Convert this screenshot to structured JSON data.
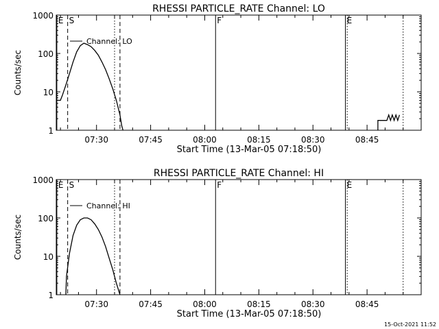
{
  "footer_timestamp": "15-Oct-2021 11:52",
  "chart_data": [
    {
      "type": "line",
      "title": "RHESSI PARTICLE_RATE Channel: LO",
      "xlabel": "Start Time (13-Mar-05 07:18:50)",
      "ylabel": "Counts/sec",
      "yscale": "log",
      "ylim": [
        1,
        1000
      ],
      "xlim": [
        "07:18:50",
        "09:00:00"
      ],
      "x_ticks": [
        "07:30",
        "07:45",
        "08:00",
        "08:15",
        "08:30",
        "08:45"
      ],
      "y_ticks": [
        "1",
        "10",
        "100",
        "1000"
      ],
      "legend": {
        "position": "top-left",
        "entries": [
          "Channel: LO"
        ]
      },
      "markers": [
        {
          "label": "E",
          "time": "07:19:00",
          "style": "solid"
        },
        {
          "label": "S",
          "time": "07:22:00",
          "style": "dashed"
        },
        {
          "label": "",
          "time": "07:35:00",
          "style": "dotted"
        },
        {
          "label": "",
          "time": "07:36:30",
          "style": "dashed"
        },
        {
          "label": "F",
          "time": "08:03:00",
          "style": "solid"
        },
        {
          "label": "E",
          "time": "08:39:00",
          "style": "solid"
        },
        {
          "label": "",
          "time": "08:39:30",
          "style": "dotted"
        },
        {
          "label": "",
          "time": "08:55:00",
          "style": "dotted"
        }
      ],
      "series": [
        {
          "name": "Channel: LO",
          "points": [
            [
              "07:18:50",
              6
            ],
            [
              "07:20:00",
              6
            ],
            [
              "07:20:30",
              8
            ],
            [
              "07:21:30",
              15
            ],
            [
              "07:22:30",
              30
            ],
            [
              "07:23:30",
              60
            ],
            [
              "07:24:30",
              110
            ],
            [
              "07:25:30",
              160
            ],
            [
              "07:26:30",
              185
            ],
            [
              "07:27:30",
              170
            ],
            [
              "07:28:30",
              150
            ],
            [
              "07:29:30",
              120
            ],
            [
              "07:30:30",
              90
            ],
            [
              "07:31:30",
              60
            ],
            [
              "07:32:30",
              38
            ],
            [
              "07:33:30",
              22
            ],
            [
              "07:34:30",
              12
            ],
            [
              "07:35:30",
              6
            ],
            [
              "07:36:30",
              2.5
            ],
            [
              "07:37:00",
              1.3
            ],
            [
              "07:37:20",
              1
            ]
          ]
        },
        {
          "name": "Channel: LO",
          "points": [
            [
              "08:48:00",
              1
            ],
            [
              "08:48:00",
              1.8
            ],
            [
              "08:50:30",
              1.8
            ],
            [
              "08:51:00",
              2.5
            ],
            [
              "08:51:30",
              1.8
            ],
            [
              "08:52:00",
              2.5
            ],
            [
              "08:52:30",
              1.8
            ],
            [
              "08:53:00",
              2.5
            ],
            [
              "08:53:30",
              1.8
            ],
            [
              "08:54:00",
              2.5
            ]
          ]
        }
      ]
    },
    {
      "type": "line",
      "title": "RHESSI PARTICLE_RATE Channel: HI",
      "xlabel": "Start Time (13-Mar-05 07:18:50)",
      "ylabel": "Counts/sec",
      "yscale": "log",
      "ylim": [
        1,
        1000
      ],
      "xlim": [
        "07:18:50",
        "09:00:00"
      ],
      "x_ticks": [
        "07:30",
        "07:45",
        "08:00",
        "08:15",
        "08:30",
        "08:45"
      ],
      "y_ticks": [
        "1",
        "10",
        "100",
        "1000"
      ],
      "legend": {
        "position": "top-left",
        "entries": [
          "Channel: HI"
        ]
      },
      "markers": [
        {
          "label": "E",
          "time": "07:19:00",
          "style": "solid"
        },
        {
          "label": "S",
          "time": "07:22:00",
          "style": "dashed"
        },
        {
          "label": "",
          "time": "07:35:00",
          "style": "dotted"
        },
        {
          "label": "",
          "time": "07:36:30",
          "style": "dashed"
        },
        {
          "label": "F",
          "time": "08:03:00",
          "style": "solid"
        },
        {
          "label": "E",
          "time": "08:39:00",
          "style": "solid"
        },
        {
          "label": "",
          "time": "08:39:30",
          "style": "dotted"
        },
        {
          "label": "",
          "time": "08:55:00",
          "style": "dotted"
        }
      ],
      "series": [
        {
          "name": "Channel: HI",
          "points": [
            [
              "07:21:30",
              1
            ],
            [
              "07:21:40",
              3
            ],
            [
              "07:22:30",
              12
            ],
            [
              "07:23:30",
              35
            ],
            [
              "07:24:30",
              65
            ],
            [
              "07:25:30",
              90
            ],
            [
              "07:26:30",
              100
            ],
            [
              "07:27:30",
              100
            ],
            [
              "07:28:30",
              90
            ],
            [
              "07:29:30",
              70
            ],
            [
              "07:30:30",
              50
            ],
            [
              "07:31:30",
              32
            ],
            [
              "07:32:30",
              18
            ],
            [
              "07:33:30",
              9
            ],
            [
              "07:34:30",
              4.5
            ],
            [
              "07:35:30",
              2
            ],
            [
              "07:36:30",
              1
            ]
          ]
        }
      ]
    }
  ]
}
